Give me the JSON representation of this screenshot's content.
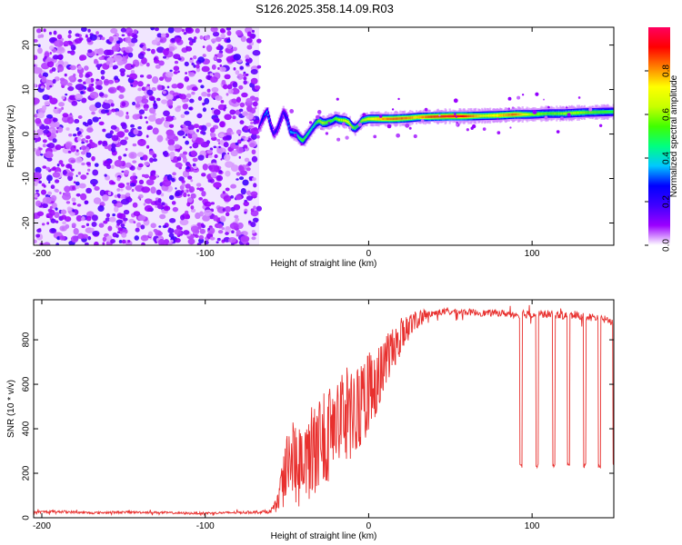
{
  "title": "S126.2025.358.14.09.R03",
  "chart_data": [
    {
      "type": "heatmap",
      "xlabel": "Height of straight line (km)",
      "ylabel": "Frequency (Hz)",
      "xlim": [
        -205,
        150
      ],
      "ylim": [
        -25,
        24
      ],
      "xticks": [
        -200,
        -100,
        0,
        100
      ],
      "yticks": [
        -20,
        -10,
        0,
        10,
        20
      ],
      "noise_region_x": [
        -205,
        -67
      ],
      "ridge": {
        "x": [
          -67,
          -64,
          -62,
          -60,
          -58,
          -56,
          -54,
          -52,
          -50,
          -48,
          -46,
          -44,
          -42,
          -40,
          -38,
          -36,
          -34,
          -32,
          -30,
          -28,
          -26,
          -24,
          -22,
          -20,
          -18,
          -16,
          -14,
          -12,
          -10,
          -8,
          -6,
          -4,
          -2,
          0,
          5,
          10,
          15,
          20,
          25,
          30,
          40,
          50,
          60,
          70,
          80,
          90,
          100,
          110,
          120,
          130,
          140,
          150
        ],
        "y": [
          1.5,
          4,
          5,
          2,
          0,
          1,
          3,
          5,
          3.5,
          0.5,
          0.3,
          0,
          -1,
          -1.5,
          -0.5,
          0.5,
          1.5,
          2.5,
          3,
          2.5,
          2.5,
          2.8,
          3,
          3.5,
          3.2,
          3.1,
          3,
          2.6,
          1.6,
          1.3,
          2,
          3,
          3.2,
          3.4,
          3.4,
          3.4,
          3.4,
          3.5,
          3.6,
          3.8,
          3.9,
          4,
          4,
          4.1,
          4.2,
          4.4,
          4.4,
          4.6,
          4.6,
          4.8,
          4.9,
          5
        ],
        "amplitude": [
          0.15,
          0.3,
          0.35,
          0.3,
          0.2,
          0.25,
          0.25,
          0.2,
          0.3,
          0.35,
          0.35,
          0.4,
          0.5,
          0.55,
          0.5,
          0.45,
          0.45,
          0.5,
          0.6,
          0.65,
          0.6,
          0.55,
          0.5,
          0.55,
          0.6,
          0.6,
          0.65,
          0.7,
          0.6,
          0.5,
          0.55,
          0.6,
          0.65,
          0.7,
          0.75,
          0.8,
          0.85,
          0.85,
          0.8,
          0.75,
          0.9,
          0.95,
          0.9,
          0.7,
          0.75,
          0.85,
          0.6,
          0.55,
          0.6,
          0.6,
          0.55,
          0.5
        ]
      },
      "colorbar": {
        "label": "Normalized spectral amplitude",
        "range": [
          0,
          1
        ],
        "ticks": [
          "0.0",
          "0.2",
          "0.4",
          "0.6",
          "0.8"
        ],
        "colors": [
          "#ffffff",
          "#9b00ff",
          "#4000ff",
          "#0000ff",
          "#00c8ff",
          "#00ff80",
          "#40ff00",
          "#c8ff00",
          "#ffff00",
          "#ff8000",
          "#ff0000",
          "#ff0060"
        ]
      }
    },
    {
      "type": "line",
      "xlabel": "Height of straight line (km)",
      "ylabel": "SNR (10 * v/v)",
      "xlim": [
        -205,
        150
      ],
      "ylim": [
        0,
        980
      ],
      "xticks": [
        -200,
        -100,
        0,
        100
      ],
      "yticks": [
        0,
        200,
        400,
        600,
        800
      ],
      "color": "#e8302e",
      "series": [
        {
          "name": "SNR",
          "x": [
            -205,
            -190,
            -170,
            -150,
            -130,
            -110,
            -90,
            -70,
            -60,
            -55,
            -50,
            -45,
            -40,
            -35,
            -30,
            -25,
            -20,
            -15,
            -10,
            -5,
            0,
            5,
            10,
            15,
            20,
            25,
            30,
            35,
            40,
            45,
            50,
            60,
            70,
            80,
            90,
            100,
            110,
            120,
            130,
            140,
            150
          ],
          "y": [
            25,
            28,
            22,
            25,
            24,
            20,
            22,
            25,
            28,
            80,
            220,
            250,
            200,
            300,
            340,
            380,
            420,
            460,
            470,
            520,
            560,
            620,
            700,
            760,
            820,
            860,
            890,
            910,
            920,
            925,
            925,
            925,
            920,
            920,
            915,
            915,
            915,
            910,
            905,
            900,
            880
          ],
          "noise_amplitude": [
            8,
            10,
            8,
            8,
            8,
            8,
            8,
            10,
            15,
            60,
            150,
            200,
            160,
            200,
            220,
            220,
            220,
            220,
            200,
            200,
            180,
            150,
            120,
            100,
            80,
            60,
            40,
            30,
            25,
            25,
            25,
            25,
            25,
            25,
            30,
            30,
            30,
            30,
            30,
            30,
            30
          ],
          "dropouts": {
            "x": [
              93,
              103,
              113,
              122,
              132,
              141,
              150
            ],
            "value": 235
          }
        }
      ]
    }
  ]
}
